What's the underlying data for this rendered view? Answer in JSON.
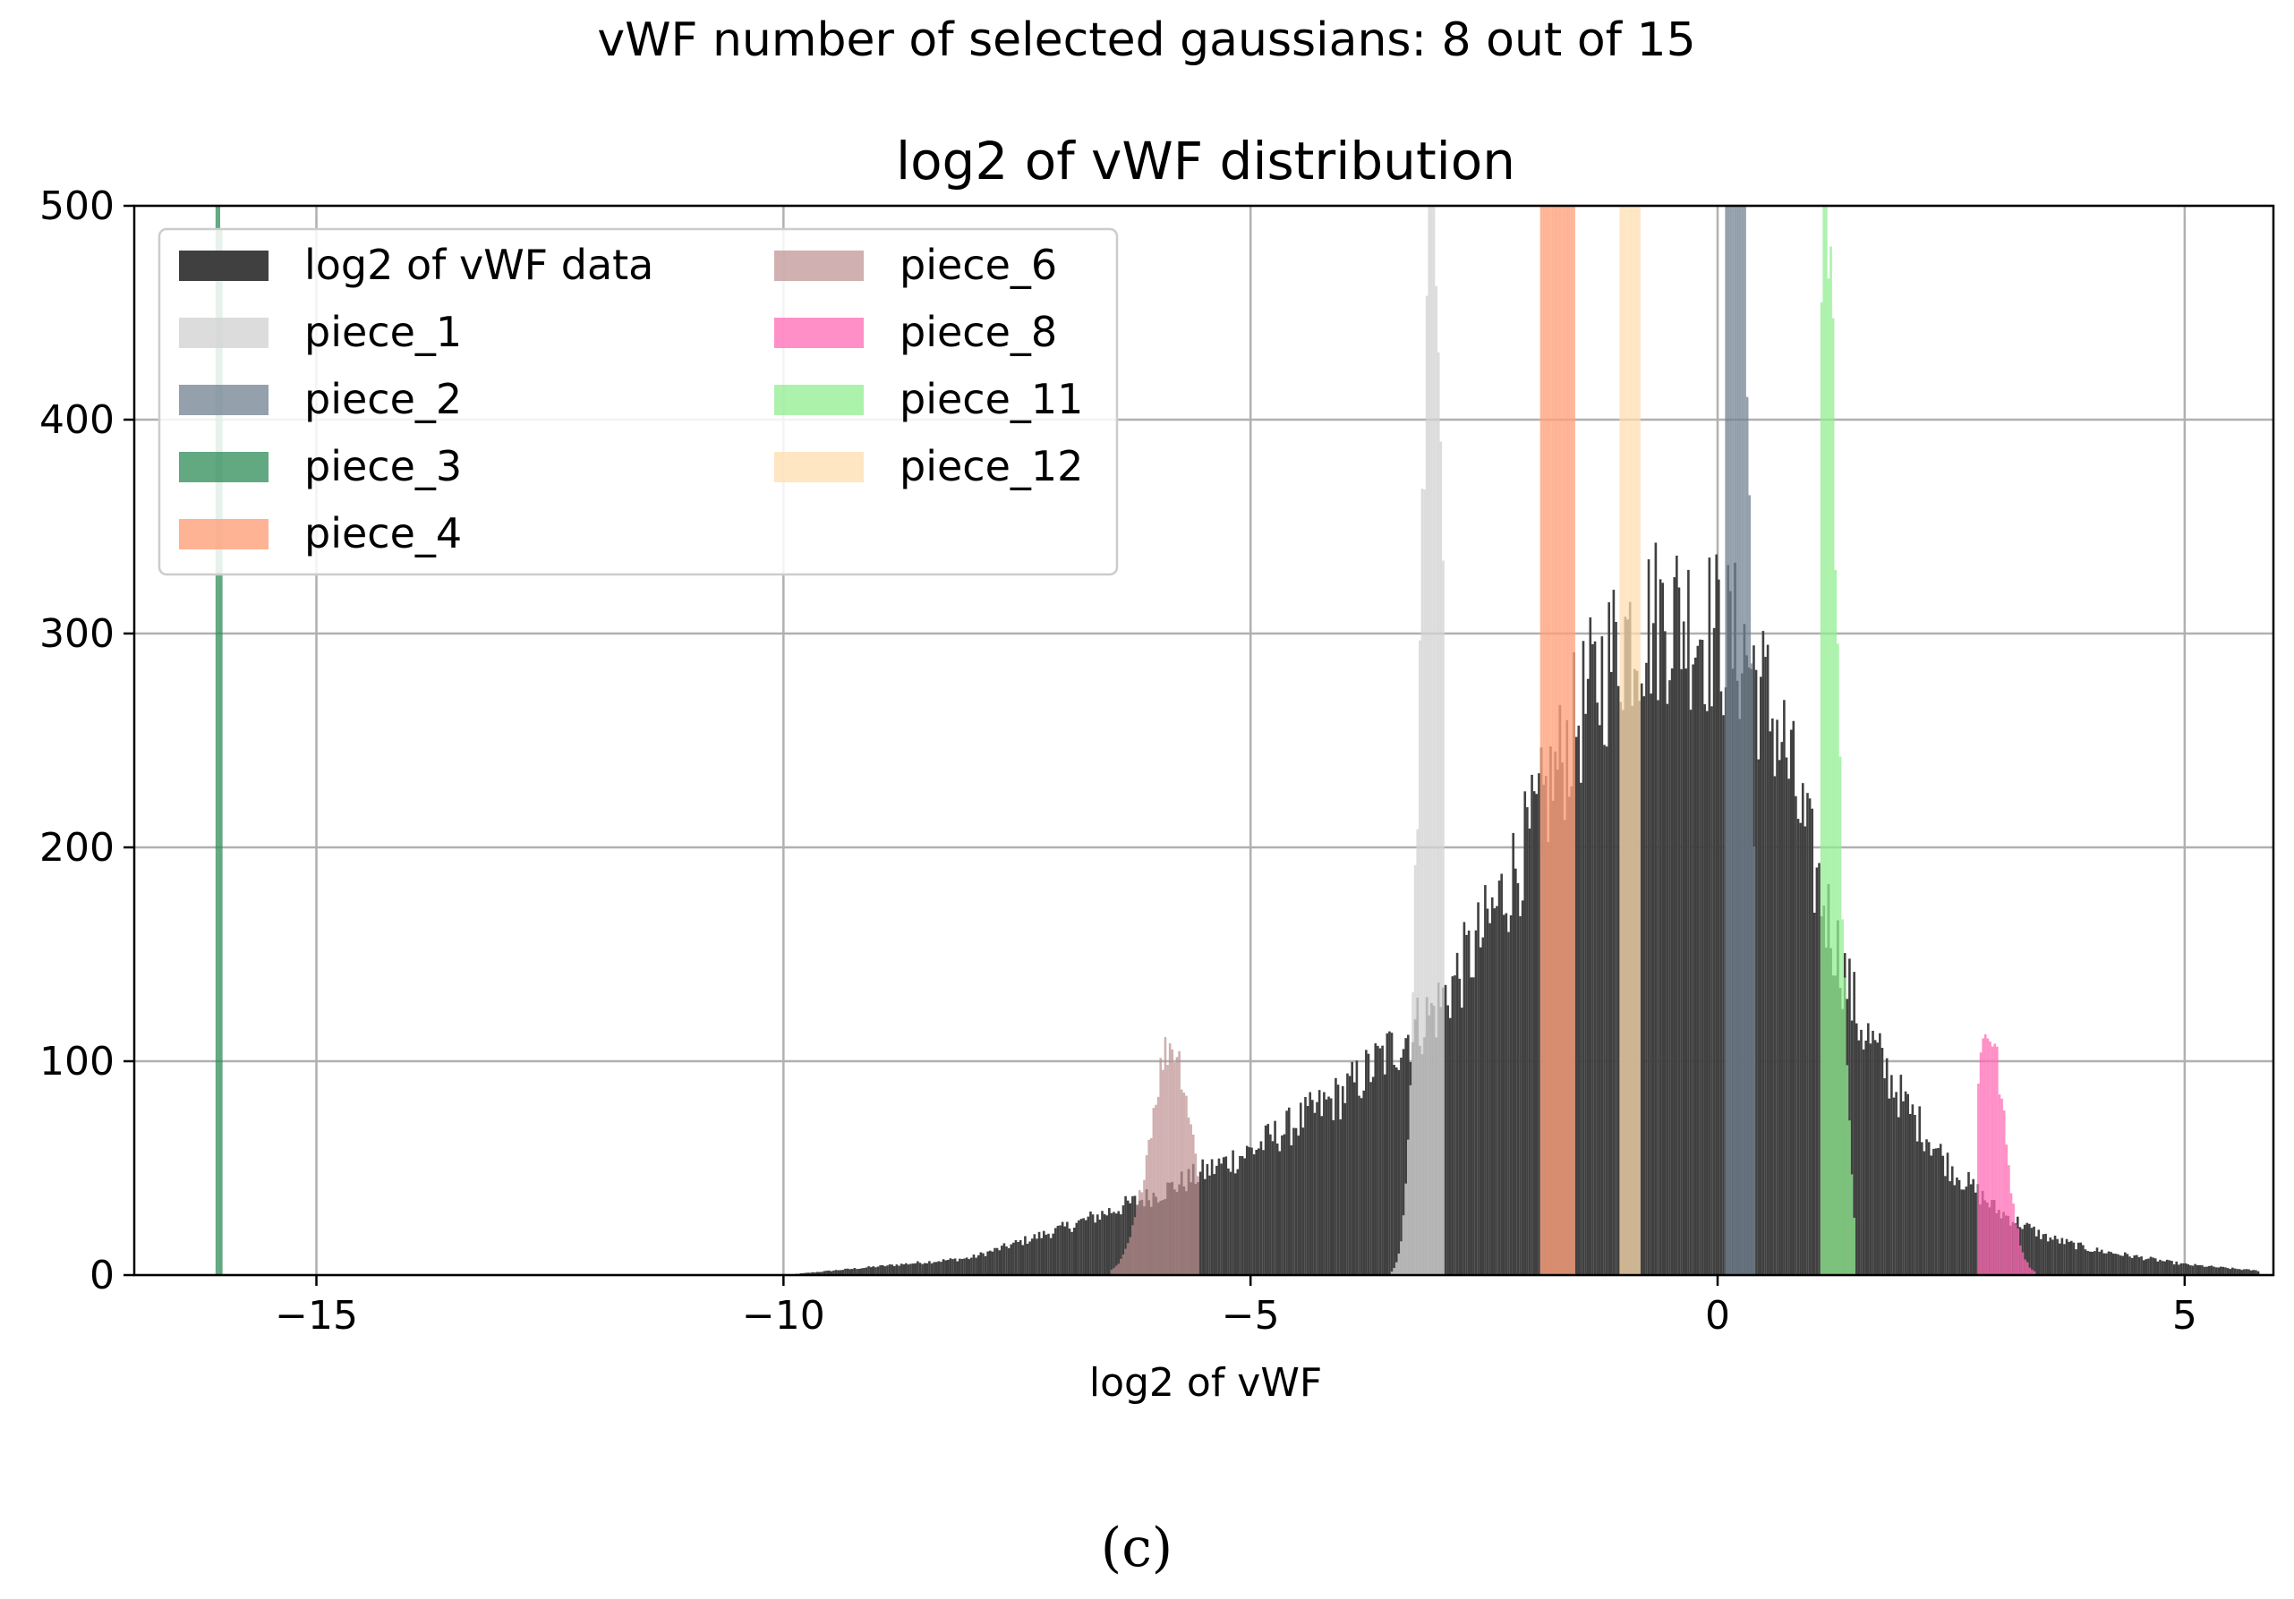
{
  "chart_data": {
    "type": "histogram",
    "suptitle": "vWF number of selected gaussians: 8 out of 15",
    "title": "log2 of vWF distribution",
    "xlabel": "log2 of vWF",
    "ylabel": "",
    "xlim": [
      -16.95,
      5.95
    ],
    "ylim": [
      0,
      500
    ],
    "xticks": [
      -15,
      -10,
      -5,
      0,
      5
    ],
    "xtick_labels": [
      "−15",
      "−10",
      "−5",
      "0",
      "5"
    ],
    "yticks": [
      0,
      100,
      200,
      300,
      400,
      500
    ],
    "ytick_labels": [
      "0",
      "100",
      "200",
      "300",
      "400",
      "500"
    ],
    "grid": true,
    "legend_position": "upper-left",
    "legend_columns": 2,
    "series": [
      {
        "name": "log2 of vWF data",
        "color": "#404040",
        "opacity": 1.0,
        "kind": "data",
        "x_range": [
          -10.0,
          5.8
        ],
        "profile": [
          [
            -10.0,
            0
          ],
          [
            -8.0,
            8
          ],
          [
            -7.0,
            22
          ],
          [
            -6.0,
            38
          ],
          [
            -5.0,
            58
          ],
          [
            -4.0,
            85
          ],
          [
            -3.0,
            125
          ],
          [
            -2.5,
            160
          ],
          [
            -2.0,
            205
          ],
          [
            -1.5,
            260
          ],
          [
            -1.0,
            300
          ],
          [
            -0.5,
            310
          ],
          [
            0.0,
            300
          ],
          [
            0.3,
            292
          ],
          [
            0.7,
            250
          ],
          [
            1.0,
            195
          ],
          [
            1.5,
            120
          ],
          [
            2.0,
            80
          ],
          [
            2.5,
            50
          ],
          [
            3.0,
            30
          ],
          [
            3.5,
            18
          ],
          [
            4.0,
            12
          ],
          [
            5.0,
            5
          ],
          [
            5.8,
            2
          ]
        ]
      },
      {
        "name": "piece_1",
        "color": "#d3d3d3",
        "opacity": 0.8,
        "kind": "gauss",
        "mean": -3.05,
        "sd": 0.13,
        "peak": 500,
        "range": [
          -3.5,
          -2.95
        ]
      },
      {
        "name": "piece_2",
        "color": "#708090",
        "opacity": 0.75,
        "kind": "gauss",
        "mean": 0.15,
        "sd": 0.15,
        "peak": 760,
        "range": [
          0.08,
          0.4
        ]
      },
      {
        "name": "piece_3",
        "color": "#2e8b57",
        "opacity": 0.75,
        "kind": "gauss",
        "mean": -16.05,
        "sd": 0.02,
        "peak": 2000,
        "range": [
          -16.08,
          -16.02
        ]
      },
      {
        "name": "piece_4",
        "color": "#ffa07a",
        "opacity": 0.8,
        "kind": "gauss",
        "mean": -1.75,
        "sd": 0.25,
        "peak": 1100,
        "range": [
          -1.9,
          -1.55
        ]
      },
      {
        "name": "piece_6",
        "color": "#bc8f8f",
        "opacity": 0.7,
        "kind": "gauss",
        "mean": -5.85,
        "sd": 0.23,
        "peak": 108,
        "range": [
          -6.5,
          -5.55
        ]
      },
      {
        "name": "piece_8",
        "color": "#ff69b4",
        "opacity": 0.75,
        "kind": "gauss",
        "mean": 2.9,
        "sd": 0.17,
        "peak": 115,
        "range": [
          2.78,
          3.4
        ]
      },
      {
        "name": "piece_11",
        "color": "#90ee90",
        "opacity": 0.75,
        "kind": "gauss",
        "mean": 1.15,
        "sd": 0.13,
        "peak": 520,
        "range": [
          1.1,
          1.45
        ]
      },
      {
        "name": "piece_12",
        "color": "#ffdead",
        "opacity": 0.75,
        "kind": "gauss",
        "mean": -0.95,
        "sd": 0.3,
        "peak": 800,
        "range": [
          -1.05,
          -0.85
        ]
      }
    ]
  },
  "caption": "(c)"
}
